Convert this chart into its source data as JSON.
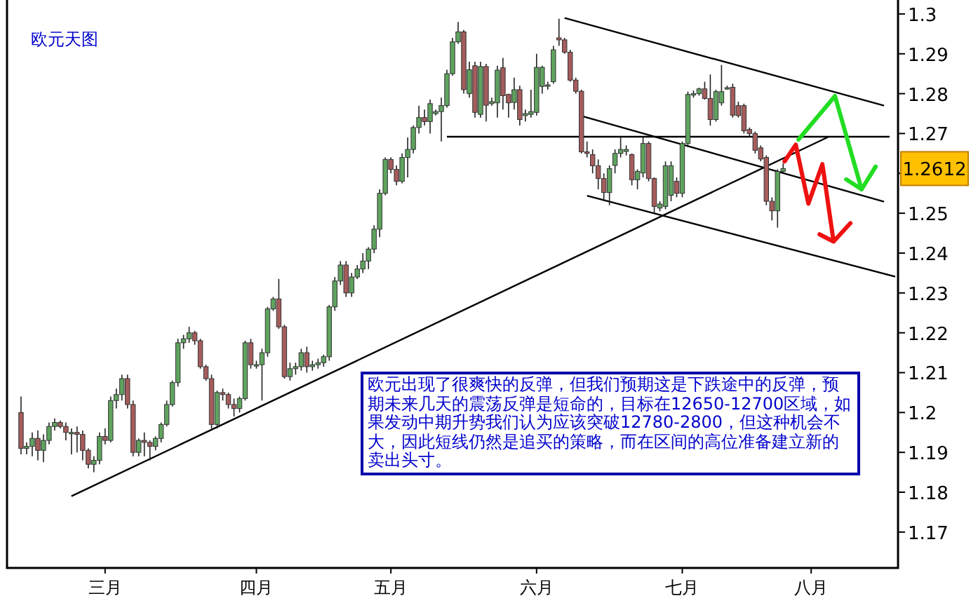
{
  "chart_data": {
    "type": "candlestick",
    "title": "欧元天图",
    "categories": [
      null,
      null,
      null,
      null,
      null,
      null,
      null,
      null,
      null,
      null,
      null,
      null,
      null,
      null,
      null,
      null,
      null,
      "三月",
      null,
      null,
      null,
      null,
      null,
      null,
      null,
      null,
      null,
      null,
      null,
      null,
      null,
      null,
      null,
      null,
      null,
      null,
      null,
      null,
      null,
      null,
      null,
      null,
      null,
      null,
      "四月",
      null,
      null,
      null,
      null,
      null,
      null,
      null,
      null,
      null,
      null,
      null,
      null,
      null,
      null,
      null,
      null,
      null,
      null,
      null,
      null,
      null,
      null,
      null,
      "五月",
      null,
      null,
      null,
      null,
      null,
      null,
      null,
      null,
      null,
      null,
      null,
      null,
      null,
      null,
      null,
      null,
      null,
      null,
      null,
      null,
      null,
      null,
      null,
      null,
      null,
      "六月",
      null,
      null,
      null,
      null,
      null,
      null,
      null,
      null,
      null,
      null,
      null,
      null,
      null,
      null,
      null,
      null,
      null,
      null,
      null,
      null,
      null,
      null,
      null,
      null,
      null,
      "七月",
      null,
      null,
      null,
      null,
      null,
      null,
      null,
      null,
      null,
      null,
      null,
      null,
      null,
      null,
      null,
      null,
      null,
      null,
      null,
      null,
      null,
      null,
      "八月",
      null,
      null,
      null,
      null,
      null,
      null,
      null,
      null,
      null,
      null,
      null,
      null,
      null,
      null,
      null
    ],
    "ohlc": [
      null,
      null,
      [
        1.2,
        1.204,
        1.1895,
        1.191
      ],
      [
        1.191,
        1.1925,
        1.1895,
        1.1915
      ],
      [
        1.1915,
        1.195,
        1.189,
        1.1935
      ],
      [
        1.1935,
        1.1955,
        1.188,
        1.1905
      ],
      [
        1.1905,
        1.1945,
        1.1875,
        1.193
      ],
      [
        1.193,
        1.1975,
        1.192,
        1.1965
      ],
      [
        1.1965,
        1.1985,
        1.1955,
        1.1975
      ],
      [
        1.1975,
        1.198,
        1.196,
        1.1965
      ],
      [
        1.1965,
        1.1975,
        1.193,
        1.195
      ],
      [
        1.195,
        1.196,
        1.1895,
        1.195
      ],
      [
        1.195,
        1.1965,
        1.19,
        1.1945
      ],
      [
        1.1945,
        1.1955,
        1.188,
        1.1905
      ],
      [
        1.1905,
        1.191,
        1.186,
        1.187
      ],
      [
        1.187,
        1.189,
        1.185,
        1.188
      ],
      [
        1.188,
        1.195,
        1.187,
        1.194
      ],
      [
        1.194,
        1.196,
        1.192,
        1.193
      ],
      [
        1.193,
        1.204,
        1.1925,
        1.203
      ],
      [
        1.203,
        1.206,
        1.201,
        1.2045
      ],
      [
        1.2045,
        1.2095,
        1.203,
        1.2085
      ],
      [
        1.2085,
        1.2095,
        1.201,
        1.202
      ],
      [
        1.202,
        1.203,
        1.189,
        1.19
      ],
      [
        1.19,
        1.1935,
        1.189,
        1.193
      ],
      [
        1.193,
        1.195,
        1.189,
        1.1925
      ],
      [
        1.1925,
        1.193,
        1.188,
        1.1915
      ],
      [
        1.1915,
        1.194,
        1.1905,
        1.1935
      ],
      [
        1.1935,
        1.1975,
        1.1925,
        1.197
      ],
      [
        1.197,
        1.203,
        1.1965,
        1.202
      ],
      [
        1.202,
        1.208,
        1.2015,
        1.2075
      ],
      [
        1.2075,
        1.2185,
        1.2065,
        1.2175
      ],
      [
        1.2175,
        1.2195,
        1.216,
        1.2185
      ],
      [
        1.2185,
        1.2215,
        1.2175,
        1.22
      ],
      [
        1.22,
        1.2205,
        1.217,
        1.218
      ],
      [
        1.218,
        1.2185,
        1.211,
        1.2115
      ],
      [
        1.2115,
        1.212,
        1.208,
        1.2085
      ],
      [
        1.2085,
        1.2095,
        1.196,
        1.197
      ],
      [
        1.197,
        1.2055,
        1.196,
        1.205
      ],
      [
        1.205,
        1.206,
        1.203,
        1.2045
      ],
      [
        1.2045,
        1.205,
        1.201,
        1.202
      ],
      [
        1.202,
        1.2035,
        1.199,
        1.201
      ],
      [
        1.201,
        1.204,
        1.2,
        1.2035
      ],
      [
        1.2035,
        1.218,
        1.203,
        1.2175
      ],
      [
        1.2175,
        1.2185,
        1.211,
        1.212
      ],
      [
        1.212,
        1.213,
        1.211,
        1.212
      ],
      [
        1.212,
        1.216,
        1.203,
        1.215
      ],
      [
        1.215,
        1.2265,
        1.214,
        1.226
      ],
      [
        1.226,
        1.229,
        1.2255,
        1.2285
      ],
      [
        1.2285,
        1.2335,
        1.221,
        1.2215
      ],
      [
        1.2215,
        1.222,
        1.2085,
        1.209
      ],
      [
        1.209,
        1.2125,
        1.208,
        1.211
      ],
      [
        1.211,
        1.2125,
        1.2095,
        1.2115
      ],
      [
        1.2115,
        1.216,
        1.2105,
        1.215
      ],
      [
        1.215,
        1.2165,
        1.21,
        1.2115
      ],
      [
        1.2115,
        1.213,
        1.2105,
        1.212
      ],
      [
        1.212,
        1.2135,
        1.211,
        1.2125
      ],
      [
        1.2125,
        1.2145,
        1.2115,
        1.214
      ],
      [
        1.214,
        1.227,
        1.213,
        1.2265
      ],
      [
        1.2265,
        1.234,
        1.2255,
        1.233
      ],
      [
        1.233,
        1.238,
        1.232,
        1.237
      ],
      [
        1.237,
        1.238,
        1.229,
        1.23
      ],
      [
        1.23,
        1.235,
        1.229,
        1.234
      ],
      [
        1.234,
        1.237,
        1.2335,
        1.236
      ],
      [
        1.236,
        1.24,
        1.235,
        1.238
      ],
      [
        1.238,
        1.2415,
        1.236,
        1.241
      ],
      [
        1.241,
        1.247,
        1.24,
        1.246
      ],
      [
        1.246,
        1.256,
        1.244,
        1.255
      ],
      [
        1.255,
        1.264,
        1.2545,
        1.2635
      ],
      [
        1.2635,
        1.264,
        1.26,
        1.261
      ],
      [
        1.261,
        1.262,
        1.257,
        1.258
      ],
      [
        1.258,
        1.265,
        1.2575,
        1.264
      ],
      [
        1.264,
        1.269,
        1.259,
        1.266
      ],
      [
        1.266,
        1.272,
        1.265,
        1.2715
      ],
      [
        1.2715,
        1.277,
        1.27,
        1.274
      ],
      [
        1.274,
        1.276,
        1.272,
        1.273
      ],
      [
        1.273,
        1.2785,
        1.27,
        1.2775
      ],
      [
        1.275,
        1.276,
        1.2745,
        1.2755
      ],
      [
        1.2755,
        1.279,
        1.268,
        1.277
      ],
      [
        1.277,
        1.286,
        1.2765,
        1.285
      ],
      [
        1.285,
        1.294,
        1.2845,
        1.293
      ],
      [
        1.293,
        1.298,
        1.2925,
        1.2955
      ],
      [
        1.2955,
        1.296,
        1.28,
        1.281
      ],
      [
        1.28,
        1.288,
        1.279,
        1.286
      ],
      [
        1.287,
        1.288,
        1.274,
        1.2753
      ],
      [
        1.2748,
        1.288,
        1.274,
        1.2868
      ],
      [
        1.2868,
        1.2875,
        1.273,
        1.2771
      ],
      [
        1.2775,
        1.279,
        1.277,
        1.278
      ],
      [
        1.2777,
        1.287,
        1.274,
        1.2859
      ],
      [
        1.2865,
        1.289,
        1.276,
        1.2795
      ],
      [
        1.2798,
        1.28,
        1.274,
        1.2777
      ],
      [
        1.2778,
        1.284,
        1.276,
        1.281
      ],
      [
        1.281,
        1.282,
        1.272,
        1.2735
      ],
      [
        1.2745,
        1.276,
        1.273,
        1.275
      ],
      [
        1.2748,
        1.281,
        1.274,
        1.2755
      ],
      [
        1.2753,
        1.29,
        1.2745,
        1.2866
      ],
      [
        1.2818,
        1.287,
        1.28,
        1.2866
      ],
      [
        1.282,
        1.283,
        1.281,
        1.2822
      ],
      [
        1.283,
        1.292,
        1.2825,
        1.291
      ],
      [
        1.294,
        1.2988,
        1.292,
        1.2935
      ],
      [
        1.2935,
        1.294,
        1.29,
        1.2904
      ],
      [
        1.2904,
        1.291,
        1.283,
        1.2834
      ],
      [
        1.2834,
        1.284,
        1.28,
        1.2806
      ],
      [
        1.2806,
        1.281,
        1.265,
        1.2654
      ],
      [
        1.2654,
        1.268,
        1.264,
        1.265
      ],
      [
        1.2647,
        1.266,
        1.26,
        1.2619
      ],
      [
        1.2619,
        1.2635,
        1.256,
        1.2587
      ],
      [
        1.2587,
        1.26,
        1.253,
        1.2552
      ],
      [
        1.2552,
        1.262,
        1.252,
        1.2612
      ],
      [
        1.262,
        1.266,
        1.26,
        1.265
      ],
      [
        1.265,
        1.269,
        1.264,
        1.266
      ],
      [
        1.2655,
        1.267,
        1.2645,
        1.266
      ],
      [
        1.2647,
        1.265,
        1.257,
        1.2584
      ],
      [
        1.2584,
        1.261,
        1.256,
        1.2605
      ],
      [
        1.2601,
        1.269,
        1.259,
        1.2675
      ],
      [
        1.2675,
        1.268,
        1.258,
        1.2587
      ],
      [
        1.2587,
        1.259,
        1.25,
        1.2517
      ],
      [
        1.2513,
        1.253,
        1.2505,
        1.2523
      ],
      [
        1.2517,
        1.263,
        1.251,
        1.2619
      ],
      [
        1.2545,
        1.263,
        1.253,
        1.2619
      ],
      [
        1.258,
        1.259,
        1.254,
        1.255
      ],
      [
        1.255,
        1.268,
        1.254,
        1.2675
      ],
      [
        1.2675,
        1.2805,
        1.267,
        1.2798
      ],
      [
        1.2798,
        1.2808,
        1.279,
        1.28
      ],
      [
        1.28,
        1.2815,
        1.2795,
        1.2812
      ],
      [
        1.2812,
        1.283,
        1.2785,
        1.2788
      ],
      [
        1.2788,
        1.2848,
        1.272,
        1.2735
      ],
      [
        1.2735,
        1.281,
        1.273,
        1.2805
      ],
      [
        1.2777,
        1.2872,
        1.277,
        1.2805
      ],
      [
        1.2812,
        1.282,
        1.281,
        1.2815
      ],
      [
        1.2816,
        1.2825,
        1.274,
        1.2746
      ],
      [
        1.277,
        1.278,
        1.274,
        1.2745
      ],
      [
        1.277,
        1.2775,
        1.27,
        1.2707
      ],
      [
        1.271,
        1.2715,
        1.269,
        1.27
      ],
      [
        1.27,
        1.2705,
        1.265,
        1.2658
      ],
      [
        1.2664,
        1.267,
        1.263,
        1.2636
      ],
      [
        1.264,
        1.2645,
        1.252,
        1.253
      ],
      [
        1.253,
        1.254,
        1.2482,
        1.2506
      ],
      [
        1.2506,
        1.261,
        1.2464,
        1.2605
      ],
      [
        1.2605,
        1.2625,
        1.26,
        1.2612
      ],
      null,
      null,
      null,
      null,
      null,
      null,
      null,
      null,
      null,
      null,
      null,
      null,
      null,
      null,
      null,
      null,
      null,
      null,
      null,
      null
    ],
    "colors": [
      null,
      null,
      "#a65c5c",
      "#5fa35f",
      "#5fa35f",
      "#a65c5c",
      "#5fa35f",
      "#5fa35f",
      "#5fa35f",
      "#a65c5c",
      "#a65c5c",
      "#5fa35f",
      "#a65c5c",
      "#a65c5c",
      "#a65c5c",
      "#5fa35f",
      "#5fa35f",
      "#a65c5c",
      "#5fa35f",
      "#5fa35f",
      "#5fa35f",
      "#a65c5c",
      "#a65c5c",
      "#5fa35f",
      "#a65c5c",
      "#a65c5c",
      "#5fa35f",
      "#5fa35f",
      "#5fa35f",
      "#5fa35f",
      "#5fa35f",
      "#5fa35f",
      "#5fa35f",
      "#a65c5c",
      "#a65c5c",
      "#a65c5c",
      "#a65c5c",
      "#5fa35f",
      "#a65c5c",
      "#a65c5c",
      "#a65c5c",
      "#5fa35f",
      "#5fa35f",
      "#a65c5c",
      "#5fa35f",
      "#5fa35f",
      "#5fa35f",
      "#5fa35f",
      "#a65c5c",
      "#a65c5c",
      "#5fa35f",
      "#5fa35f",
      "#5fa35f",
      "#a65c5c",
      "#5fa35f",
      "#5fa35f",
      "#5fa35f",
      "#5fa35f",
      "#5fa35f",
      "#5fa35f",
      "#a65c5c",
      "#5fa35f",
      "#5fa35f",
      "#5fa35f",
      "#5fa35f",
      "#5fa35f",
      "#5fa35f",
      "#5fa35f",
      "#a65c5c",
      "#a65c5c",
      "#5fa35f",
      "#5fa35f",
      "#5fa35f",
      "#5fa35f",
      "#a65c5c",
      "#5fa35f",
      "#5fa35f",
      "#5fa35f",
      "#5fa35f",
      "#5fa35f",
      "#5fa35f",
      "#a65c5c",
      "#5fa35f",
      "#a65c5c",
      "#5fa35f",
      "#a65c5c",
      "#5fa35f",
      "#5fa35f",
      "#a65c5c",
      "#a65c5c",
      "#5fa35f",
      "#a65c5c",
      "#5fa35f",
      "#5fa35f",
      "#5fa35f",
      "#5fa35f",
      "#5fa35f",
      "#5fa35f",
      "#a65c5c",
      "#a65c5c",
      "#a65c5c",
      "#a65c5c",
      "#a65c5c",
      "#a65c5c",
      "#a65c5c",
      "#a65c5c",
      "#a65c5c",
      "#5fa35f",
      "#5fa35f",
      "#5fa35f",
      "#5fa35f",
      "#a65c5c",
      "#5fa35f",
      "#5fa35f",
      "#a65c5c",
      "#a65c5c",
      "#5fa35f",
      "#5fa35f",
      "#5fa35f",
      "#a65c5c",
      "#5fa35f",
      "#5fa35f",
      "#5fa35f",
      "#5fa35f",
      "#a65c5c",
      "#a65c5c",
      "#5fa35f",
      "#5fa35f",
      "#5fa35f",
      "#a65c5c",
      "#a65c5c",
      "#a65c5c",
      "#a65c5c",
      "#a65c5c",
      "#a65c5c",
      "#a65c5c",
      "#a65c5c",
      "#5fa35f",
      "#5fa35f",
      null,
      null,
      null,
      null,
      null,
      null,
      null,
      null,
      null,
      null,
      null,
      null,
      null,
      null,
      null,
      null,
      null,
      null,
      null,
      null
    ],
    "series": [
      {
        "type": "line",
        "color": "#000000",
        "values": [
          null,
          null,
          null,
          null,
          null,
          null,
          null,
          null,
          null,
          null,
          null,
          1.179,
          null,
          null,
          null,
          null,
          null,
          null,
          null,
          null,
          null,
          null,
          null,
          null,
          null,
          null,
          null,
          null,
          null,
          null,
          null,
          null,
          null,
          null,
          null,
          null,
          null,
          null,
          null,
          null,
          null,
          null,
          null,
          null,
          null,
          null,
          null,
          null,
          null,
          null,
          null,
          null,
          null,
          null,
          null,
          null,
          null,
          null,
          null,
          null,
          null,
          null,
          null,
          null,
          null,
          null,
          null,
          null,
          null,
          null,
          null,
          null,
          null,
          null,
          null,
          null,
          null,
          null,
          null,
          null,
          null,
          null,
          null,
          null,
          null,
          null,
          null,
          null,
          null,
          null,
          null,
          null,
          null,
          null,
          null,
          null,
          null,
          null,
          null,
          null,
          null,
          null,
          null,
          null,
          null,
          null,
          null,
          null,
          null,
          null,
          null,
          null,
          null,
          null,
          null,
          null,
          null,
          null,
          null,
          null,
          null,
          null,
          null,
          null,
          null,
          null,
          null,
          null,
          null,
          null,
          null,
          null,
          null,
          null,
          null,
          null,
          null,
          null,
          null,
          null,
          null,
          null,
          null,
          null,
          null,
          null,
          1.2691,
          null,
          null,
          null,
          null,
          null,
          null,
          null,
          null,
          null,
          null,
          null,
          null
        ]
      },
      {
        "type": "line",
        "color": "#000000",
        "values": [
          null,
          null,
          null,
          null,
          null,
          null,
          null,
          null,
          null,
          null,
          null,
          null,
          null,
          null,
          null,
          null,
          null,
          null,
          null,
          null,
          null,
          null,
          null,
          null,
          null,
          null,
          null,
          null,
          null,
          null,
          null,
          null,
          null,
          null,
          null,
          null,
          null,
          null,
          null,
          null,
          null,
          null,
          null,
          null,
          null,
          null,
          null,
          null,
          null,
          null,
          null,
          null,
          null,
          null,
          null,
          null,
          null,
          null,
          null,
          null,
          null,
          null,
          null,
          null,
          null,
          null,
          null,
          null,
          null,
          null,
          null,
          null,
          null,
          null,
          null,
          null,
          null,
          null,
          1.2692,
          null,
          null,
          null,
          null,
          null,
          null,
          null,
          null,
          null,
          null,
          null,
          null,
          null,
          null,
          null,
          null,
          null,
          null,
          null,
          null,
          null,
          null,
          null,
          null,
          null,
          null,
          null,
          null,
          null,
          null,
          null,
          null,
          null,
          null,
          null,
          null,
          null,
          null,
          null,
          null,
          null,
          null,
          null,
          null,
          null,
          null,
          null,
          null,
          null,
          null,
          null,
          null,
          null,
          null,
          null,
          null,
          null,
          null,
          null,
          null,
          null,
          null,
          null,
          null,
          null,
          null,
          null,
          null,
          null,
          null,
          null,
          null,
          null,
          null,
          null,
          null,
          null,
          null,
          1.2692,
          null
        ]
      },
      {
        "type": "line",
        "color": "#000000",
        "values": [
          null,
          null,
          null,
          null,
          null,
          null,
          null,
          null,
          null,
          null,
          null,
          null,
          null,
          null,
          null,
          null,
          null,
          null,
          null,
          null,
          null,
          null,
          null,
          null,
          null,
          null,
          null,
          null,
          null,
          null,
          null,
          null,
          null,
          null,
          null,
          null,
          null,
          null,
          null,
          null,
          null,
          null,
          null,
          null,
          null,
          null,
          null,
          null,
          null,
          null,
          null,
          null,
          null,
          null,
          null,
          null,
          null,
          null,
          null,
          null,
          null,
          null,
          null,
          null,
          null,
          null,
          null,
          null,
          null,
          null,
          null,
          null,
          null,
          null,
          null,
          null,
          null,
          null,
          null,
          null,
          null,
          null,
          null,
          null,
          null,
          null,
          null,
          null,
          null,
          null,
          null,
          null,
          null,
          null,
          null,
          null,
          null,
          null,
          null,
          1.299,
          null,
          null,
          null,
          null,
          null,
          null,
          null,
          null,
          null,
          null,
          null,
          null,
          null,
          null,
          null,
          null,
          null,
          null,
          null,
          null,
          null,
          null,
          null,
          null,
          null,
          null,
          null,
          null,
          null,
          null,
          null,
          null,
          null,
          null,
          null,
          null,
          null,
          null,
          null,
          null,
          null,
          null,
          null,
          null,
          null,
          null,
          null,
          null,
          null,
          null,
          null,
          null,
          null,
          null,
          null,
          null,
          1.277,
          null,
          null
        ]
      },
      {
        "type": "line",
        "color": "#000000",
        "values": [
          null,
          null,
          null,
          null,
          null,
          null,
          null,
          null,
          null,
          null,
          null,
          null,
          null,
          null,
          null,
          null,
          null,
          null,
          null,
          null,
          null,
          null,
          null,
          null,
          null,
          null,
          null,
          null,
          null,
          null,
          null,
          null,
          null,
          null,
          null,
          null,
          null,
          null,
          null,
          null,
          null,
          null,
          null,
          null,
          null,
          null,
          null,
          null,
          null,
          null,
          null,
          null,
          null,
          null,
          null,
          null,
          null,
          null,
          null,
          null,
          null,
          null,
          null,
          null,
          null,
          null,
          null,
          null,
          null,
          null,
          null,
          null,
          null,
          null,
          null,
          null,
          null,
          null,
          null,
          null,
          null,
          null,
          null,
          null,
          null,
          null,
          null,
          null,
          null,
          null,
          null,
          null,
          null,
          null,
          null,
          null,
          null,
          null,
          null,
          null,
          null,
          null,
          1.2744,
          null,
          null,
          null,
          null,
          null,
          null,
          null,
          null,
          null,
          null,
          null,
          null,
          null,
          null,
          null,
          null,
          null,
          null,
          null,
          null,
          null,
          null,
          null,
          null,
          null,
          null,
          null,
          null,
          null,
          null,
          null,
          null,
          null,
          null,
          null,
          null,
          null,
          null,
          null,
          null,
          null,
          null,
          null,
          null,
          null,
          null,
          null,
          null,
          null,
          null,
          null,
          null,
          null,
          1.2529,
          null,
          null
        ]
      },
      {
        "type": "line",
        "color": "#000000",
        "values": [
          null,
          null,
          null,
          null,
          null,
          null,
          null,
          null,
          null,
          null,
          null,
          null,
          null,
          null,
          null,
          null,
          null,
          null,
          null,
          null,
          null,
          null,
          null,
          null,
          null,
          null,
          null,
          null,
          null,
          null,
          null,
          null,
          null,
          null,
          null,
          null,
          null,
          null,
          null,
          null,
          null,
          null,
          null,
          null,
          null,
          null,
          null,
          null,
          null,
          null,
          null,
          null,
          null,
          null,
          null,
          null,
          null,
          null,
          null,
          null,
          null,
          null,
          null,
          null,
          null,
          null,
          null,
          null,
          null,
          null,
          null,
          null,
          null,
          null,
          null,
          null,
          null,
          null,
          null,
          null,
          null,
          null,
          null,
          null,
          null,
          null,
          null,
          null,
          null,
          null,
          null,
          null,
          null,
          null,
          null,
          null,
          null,
          null,
          null,
          null,
          null,
          null,
          null,
          1.2544,
          null,
          null,
          null,
          null,
          null,
          null,
          null,
          null,
          null,
          null,
          null,
          null,
          null,
          null,
          null,
          null,
          null,
          null,
          null,
          null,
          null,
          null,
          null,
          null,
          null,
          null,
          null,
          null,
          null,
          null,
          null,
          null,
          null,
          null,
          null,
          null,
          null,
          null,
          null,
          null,
          null,
          null,
          null,
          null,
          null,
          null,
          null,
          null,
          null,
          null,
          null,
          null,
          null,
          null,
          1.2341
        ]
      }
    ],
    "ylim": [
      1.161,
      1.3035
    ],
    "yticks": [
      1.17,
      1.18,
      1.19,
      1.2,
      1.21,
      1.22,
      1.23,
      1.24,
      1.25,
      {
        "value": 1.26,
        "label": null
      },
      1.27,
      1.28,
      1.29,
      1.3
    ],
    "annotations": [
      "欧元出现了很爽快的反弹，但我们预期这是下跌途中的反弹，预期未来几天的震荡反弹是短命的，目标在12650-12700区域，如果发动中期升势我们认为应该突破12780-2800，但这种机会不大，因此短线仍然是追买的策略，而在区间的高位准备建立新的卖出头寸。",
      "1.2612"
    ]
  }
}
